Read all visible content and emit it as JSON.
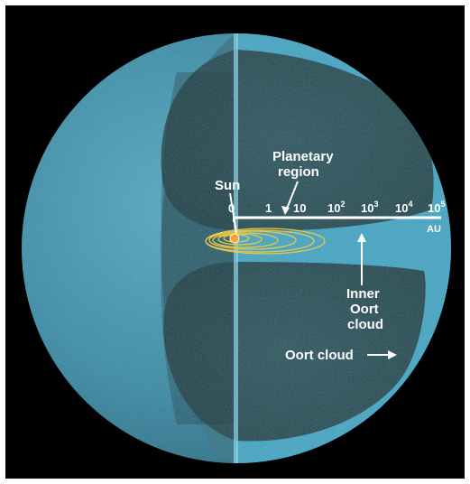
{
  "labels": {
    "sun": "Sun",
    "planetary_region": [
      "Planetary",
      "region"
    ],
    "inner_oort_cloud": [
      "Inner",
      "Oort",
      "cloud"
    ],
    "oort_cloud": "Oort cloud",
    "axis_unit": "AU"
  },
  "axis_ticks": [
    {
      "base": "0",
      "exp": ""
    },
    {
      "base": "1",
      "exp": ""
    },
    {
      "base": "10",
      "exp": ""
    },
    {
      "base": "10",
      "exp": "2"
    },
    {
      "base": "10",
      "exp": "3"
    },
    {
      "base": "10",
      "exp": "4"
    },
    {
      "base": "10",
      "exp": "5"
    }
  ],
  "colors": {
    "background": "#000000",
    "sphere": "#2f8aa6",
    "inner_oort": "#3aa3c4",
    "cavity": "#1c4a52",
    "orbits": "#e8c84a",
    "sun": "#f2a238",
    "text": "#ffffff"
  }
}
